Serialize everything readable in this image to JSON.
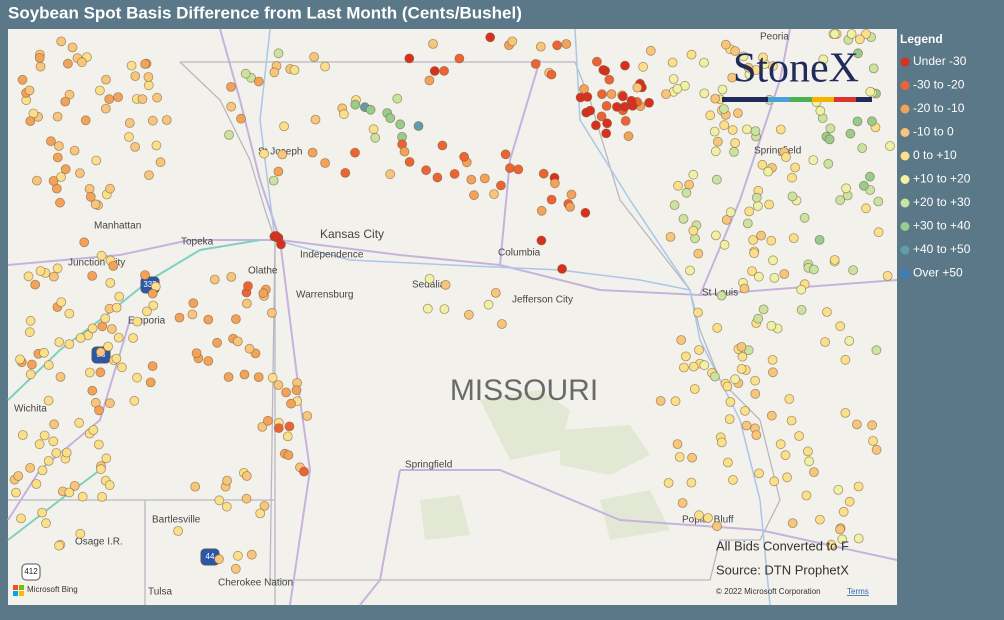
{
  "header": {
    "title": "Soybean Spot Basis Difference from Last Month (Cents/Bushel)"
  },
  "legend": {
    "title": "Legend",
    "items": [
      {
        "label": "Under -30",
        "color": "#d7301f"
      },
      {
        "label": "-30 to -20",
        "color": "#ec6436"
      },
      {
        "label": "-20 to -10",
        "color": "#f3a25a"
      },
      {
        "label": "-10 to 0",
        "color": "#f7c57c"
      },
      {
        "label": "0 to +10",
        "color": "#fbe08c"
      },
      {
        "label": "+10 to +20",
        "color": "#eef1a6"
      },
      {
        "label": "+20 to +30",
        "color": "#c9e4a2"
      },
      {
        "label": "+30 to +40",
        "color": "#98cb8e"
      },
      {
        "label": "+40 to +50",
        "color": "#5f9ea8"
      },
      {
        "label": "Over +50",
        "color": "#3a7cc0"
      }
    ]
  },
  "map": {
    "labels": [
      "St Joseph",
      "Manhattan",
      "Topeka",
      "Kansas City",
      "Independence",
      "Junction City",
      "Olathe",
      "Warrensburg",
      "Sedalia",
      "Columbia",
      "Jefferson City",
      "Emporia",
      "Wichita",
      "St Louis",
      "Springfield",
      "Springfield",
      "Bartlesville",
      "Osage I.R.",
      "Cherokee Nation",
      "Tulsa",
      "Poplar Bluff",
      "Peoria"
    ],
    "state": "MISSOURI",
    "shields": [
      "335",
      "35",
      "44",
      "412"
    ]
  },
  "logo": "StoneX",
  "notes": [
    "All Bids Converted to F",
    "Source: DTN ProphetX"
  ],
  "attribution": {
    "brand": "Microsoft Bing",
    "copyright": "© 2022 Microsoft Corporation",
    "terms": "Terms"
  }
}
